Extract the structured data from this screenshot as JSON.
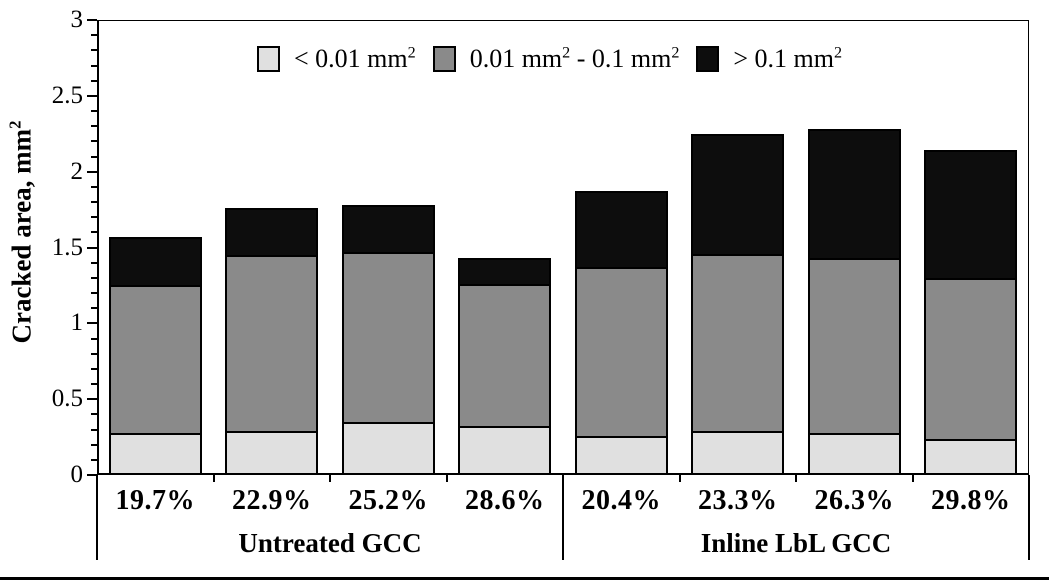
{
  "chart_data": {
    "type": "bar",
    "subtype": "stacked",
    "title": "",
    "xlabel": "",
    "ylabel": "Cracked area, mm²",
    "ylim": [
      0,
      3
    ],
    "grid": false,
    "legend_position": "top-center",
    "y_axis": {
      "min": 0,
      "max": 3,
      "major_tick": 0.5,
      "minor_tick": 0.1,
      "labels": [
        "0",
        "0.5",
        "1",
        "1.5",
        "2",
        "2.5",
        "3"
      ]
    },
    "legend": [
      {
        "label": "< 0.01 mm²",
        "color": "#e0e0e0"
      },
      {
        "label": "0.01 mm² - 0.1 mm²",
        "color": "#8a8a8a"
      },
      {
        "label": "> 0.1 mm²",
        "color": "#0d0d0d"
      }
    ],
    "categories": [
      "19.7%",
      "22.9%",
      "25.2%",
      "28.6%",
      "20.4%",
      "23.3%",
      "26.3%",
      "29.8%"
    ],
    "groups": [
      {
        "label": "Untreated GCC",
        "span": [
          0,
          4
        ]
      },
      {
        "label": "Inline LbL GCC",
        "span": [
          4,
          8
        ]
      }
    ],
    "series": [
      {
        "name": "< 0.01 mm²",
        "color": "#e0e0e0",
        "values": [
          0.28,
          0.29,
          0.35,
          0.32,
          0.26,
          0.29,
          0.28,
          0.24
        ]
      },
      {
        "name": "0.01 mm² - 0.1 mm²",
        "color": "#8a8a8a",
        "values": [
          0.97,
          1.16,
          1.12,
          0.94,
          1.11,
          1.17,
          1.15,
          1.06
        ]
      },
      {
        "name": "> 0.1 mm²",
        "color": "#0d0d0d",
        "values": [
          0.32,
          0.31,
          0.31,
          0.17,
          0.5,
          0.79,
          0.85,
          0.84
        ]
      }
    ],
    "totals": [
      1.57,
      1.76,
      1.78,
      1.43,
      1.87,
      2.25,
      2.28,
      2.14
    ],
    "colors": {
      "axis": "#000000",
      "background": "#ffffff",
      "bar_border": "#000000"
    }
  }
}
